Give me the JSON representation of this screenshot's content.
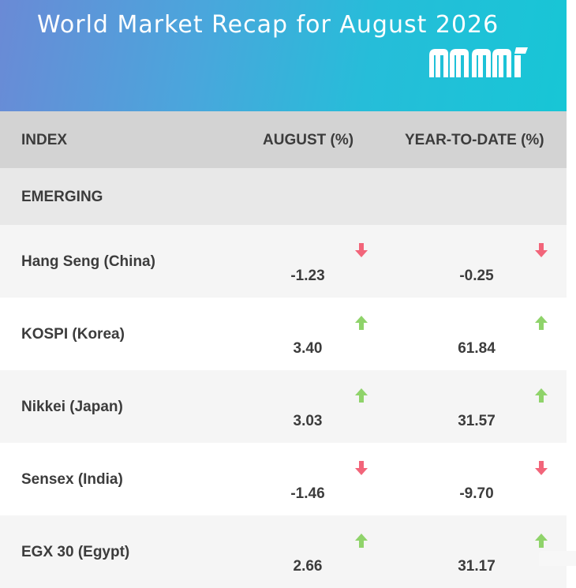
{
  "banner": {
    "title": "World Market Recap for August 2026",
    "logo_text": "mmi"
  },
  "table": {
    "headers": {
      "index": "INDEX",
      "august": "AUGUST (%)",
      "ytd": "YEAR-TO-DATE (%)"
    },
    "section": "EMERGING",
    "rows": [
      {
        "name": "Hang Seng (China)",
        "august": "-1.23",
        "ytd": "-0.25",
        "aug_dir": "down",
        "ytd_dir": "down"
      },
      {
        "name": "KOSPI (Korea)",
        "august": "3.40",
        "ytd": "61.84",
        "aug_dir": "up",
        "ytd_dir": "up"
      },
      {
        "name": "Nikkei (Japan)",
        "august": "3.03",
        "ytd": "31.57",
        "aug_dir": "up",
        "ytd_dir": "up"
      },
      {
        "name": "Sensex (India)",
        "august": "-1.46",
        "ytd": "-9.70",
        "aug_dir": "down",
        "ytd_dir": "down"
      },
      {
        "name": "EGX 30 (Egypt)",
        "august": "2.66",
        "ytd": "31.17",
        "aug_dir": "up",
        "ytd_dir": "up"
      }
    ]
  },
  "colors": {
    "up": "#8fd36a",
    "down": "#f2657a",
    "text": "#3c3c3c"
  }
}
